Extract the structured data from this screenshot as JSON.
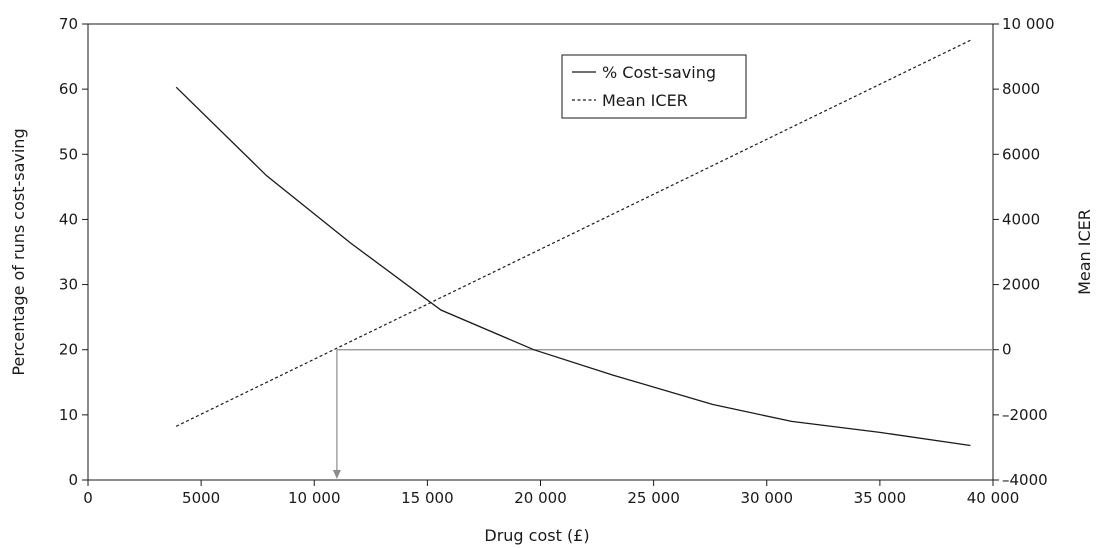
{
  "chart_data": {
    "type": "line",
    "xlabel": "Drug cost (£)",
    "ylabel_left": "Percentage of runs cost-saving",
    "ylabel_right": "Mean ICER",
    "xlim": [
      0,
      40000
    ],
    "ylim_left": [
      0,
      70
    ],
    "ylim_right": [
      -4000,
      10000
    ],
    "x_ticks": [
      0,
      5000,
      10000,
      15000,
      20000,
      25000,
      30000,
      35000,
      40000
    ],
    "x_tick_labels": [
      "0",
      "5000",
      "10 000",
      "15 000",
      "20 000",
      "25 000",
      "30 000",
      "35 000",
      "40 000"
    ],
    "y_left_ticks": [
      0,
      10,
      20,
      30,
      40,
      50,
      60,
      70
    ],
    "y_left_tick_labels": [
      "0",
      "10",
      "20",
      "30",
      "40",
      "50",
      "60",
      "70"
    ],
    "y_right_ticks": [
      -4000,
      -2000,
      0,
      2000,
      4000,
      6000,
      8000,
      10000
    ],
    "y_right_tick_labels": [
      "–4000",
      "–2000",
      "0",
      "2000",
      "4000",
      "6000",
      "8000",
      "10 000"
    ],
    "grid": false,
    "legend_position": "top-center",
    "series": [
      {
        "name": "% Cost-saving",
        "axis": "left",
        "style": "solid",
        "color": "#1a1a1a",
        "x": [
          3900,
          7900,
          11600,
          15600,
          19700,
          23200,
          27600,
          31100,
          35000,
          39000
        ],
        "y": [
          60.3,
          46.7,
          36.4,
          26.1,
          20.0,
          16.1,
          11.6,
          9.0,
          7.3,
          5.3
        ]
      },
      {
        "name": "Mean ICER",
        "axis": "right",
        "style": "dashed",
        "color": "#1a1a1a",
        "x": [
          3900,
          39000
        ],
        "y": [
          -2350,
          9500
        ]
      }
    ],
    "annotations": {
      "reference_color": "#8c8c8c",
      "break_even_cost": 11000,
      "break_even_icer": 0
    }
  }
}
